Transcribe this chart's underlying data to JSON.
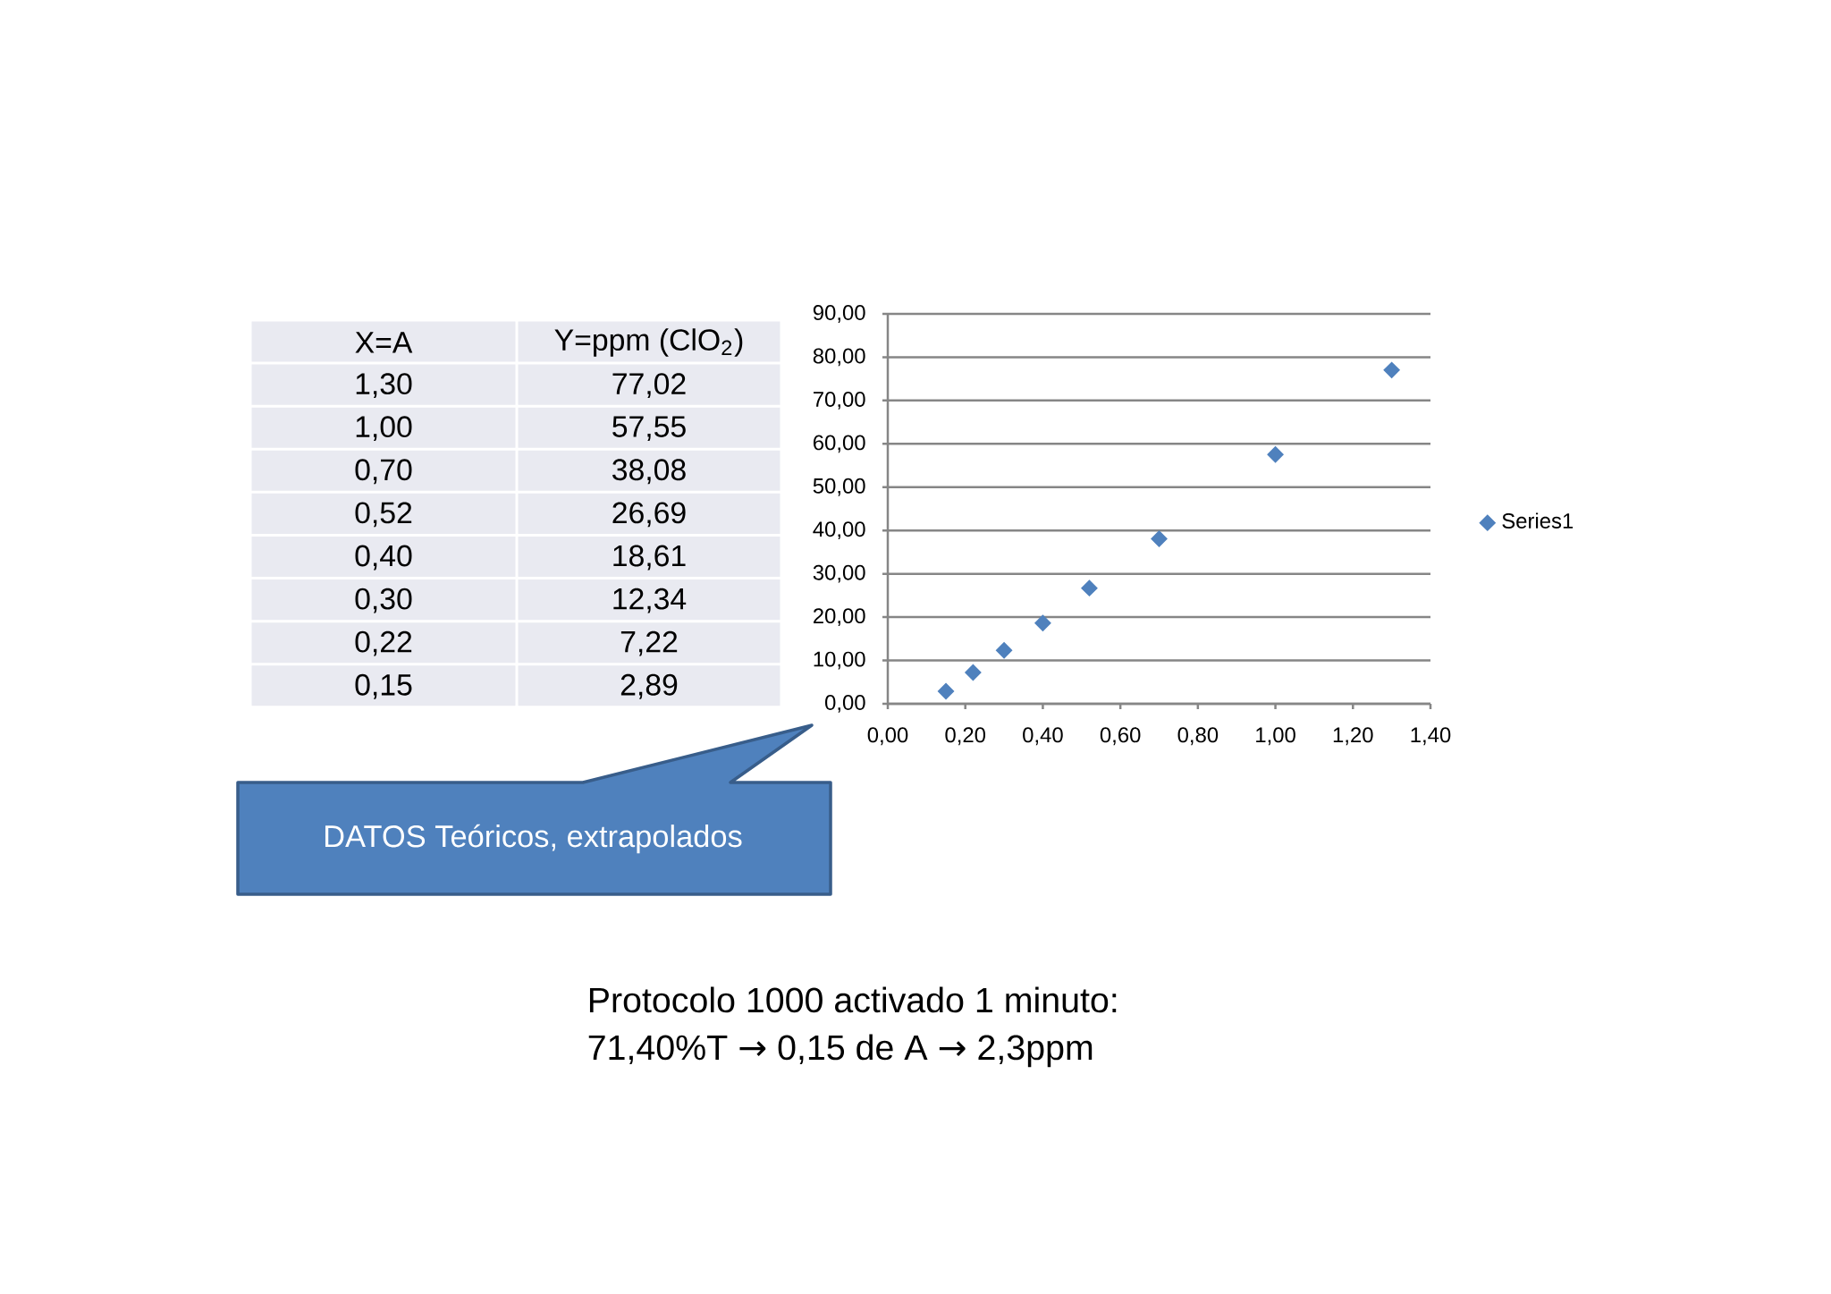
{
  "chart_data": [
    {
      "type": "other",
      "annotations": [
        "X=A",
        "Y=ppm (ClO$_{2}$)",
        "1,30",
        "77,02",
        "1,00",
        "57,55",
        "0,70",
        "38,08",
        "0,52",
        "26,69",
        "0,40",
        "18,61",
        "0,30",
        "12,34",
        "0,22",
        "7,22",
        "0,15",
        "2,89"
      ]
    },
    {
      "type": "scatter",
      "x": [
        1.3,
        1.0,
        0.7,
        0.52,
        0.4,
        0.3,
        0.22,
        0.15
      ],
      "series": [
        {
          "name": "Series1",
          "color": "#4f81bd",
          "values": [
            77.02,
            57.55,
            38.08,
            26.69,
            18.61,
            12.34,
            7.22,
            2.89
          ]
        }
      ],
      "xlim": [
        0,
        1.4
      ],
      "ylim": [
        0,
        90
      ],
      "xticks": [
        {
          "value": 0,
          "label": "0,00"
        },
        {
          "value": 0.2,
          "label": "0,20"
        },
        {
          "value": 0.4,
          "label": "0,40"
        },
        {
          "value": 0.6,
          "label": "0,60"
        },
        {
          "value": 0.8,
          "label": "0,80"
        },
        {
          "value": 1.0,
          "label": "1,00"
        },
        {
          "value": 1.2,
          "label": "1,20"
        },
        {
          "value": 1.4,
          "label": "1,40"
        }
      ],
      "yticks": [
        {
          "value": 0,
          "label": "0,00"
        },
        {
          "value": 10,
          "label": "10,00"
        },
        {
          "value": 20,
          "label": "20,00"
        },
        {
          "value": 30,
          "label": "30,00"
        },
        {
          "value": 40,
          "label": "40,00"
        },
        {
          "value": 50,
          "label": "50,00"
        },
        {
          "value": 60,
          "label": "60,00"
        },
        {
          "value": 70,
          "label": "70,00"
        },
        {
          "value": 80,
          "label": "80,00"
        },
        {
          "value": 90,
          "label": "90,00"
        }
      ],
      "grid": "y",
      "legend": "right",
      "marker": "diamond",
      "annotations": [
        "DATOS Teóricos, extrapolados",
        "Protocolo 1000 activado 1 minuto:",
        "71,40%T → 0,15 de A → 2,3ppm"
      ]
    }
  ]
}
